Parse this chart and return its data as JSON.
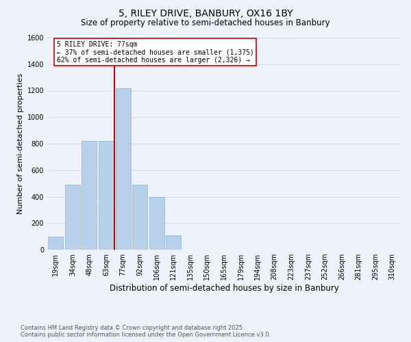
{
  "title_line1": "5, RILEY DRIVE, BANBURY, OX16 1BY",
  "title_line2": "Size of property relative to semi-detached houses in Banbury",
  "xlabel": "Distribution of semi-detached houses by size in Banbury",
  "ylabel": "Number of semi-detached properties",
  "categories": [
    "19sqm",
    "34sqm",
    "48sqm",
    "63sqm",
    "77sqm",
    "92sqm",
    "106sqm",
    "121sqm",
    "135sqm",
    "150sqm",
    "165sqm",
    "179sqm",
    "194sqm",
    "208sqm",
    "223sqm",
    "237sqm",
    "252sqm",
    "266sqm",
    "281sqm",
    "295sqm",
    "310sqm"
  ],
  "values": [
    100,
    490,
    820,
    820,
    1220,
    490,
    400,
    110,
    0,
    0,
    0,
    0,
    0,
    0,
    0,
    0,
    0,
    0,
    0,
    0,
    0
  ],
  "bar_color": "#b8d0ea",
  "bar_edgecolor": "#8ab0d0",
  "grid_color": "#d0daea",
  "background_color": "#eef2fa",
  "vline_index": 4,
  "vline_color": "#cc0000",
  "annotation_text": "5 RILEY DRIVE: 77sqm\n← 37% of semi-detached houses are smaller (1,375)\n62% of semi-detached houses are larger (2,326) →",
  "annotation_box_edgecolor": "#cc0000",
  "annotation_box_facecolor": "#ffffff",
  "ylim": [
    0,
    1600
  ],
  "yticks": [
    0,
    200,
    400,
    600,
    800,
    1000,
    1200,
    1400,
    1600
  ],
  "footer_line1": "Contains HM Land Registry data © Crown copyright and database right 2025.",
  "footer_line2": "Contains public sector information licensed under the Open Government Licence v3.0.",
  "title_fontsize": 10,
  "subtitle_fontsize": 8.5,
  "axis_label_fontsize": 8,
  "tick_fontsize": 7,
  "footer_fontsize": 6,
  "annotation_fontsize": 7
}
